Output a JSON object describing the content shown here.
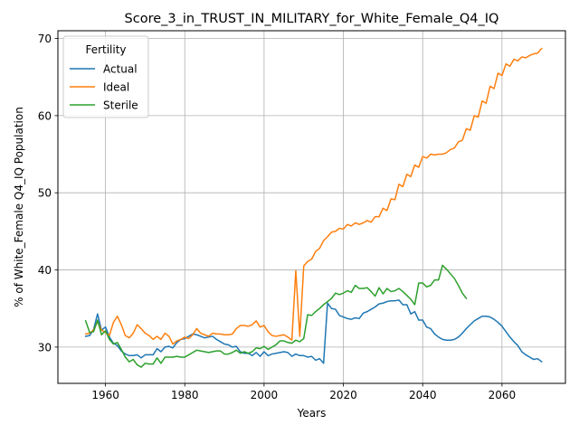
{
  "chart_data": {
    "type": "line",
    "title": "Score_3_in_TRUST_IN_MILITARY_for_White_Female_Q4_IQ",
    "xlabel": "Years",
    "ylabel": "% of White_Female Q4_IQ Population",
    "xlim": [
      1948,
      2076
    ],
    "ylim": [
      25.3,
      71.0
    ],
    "xticks": [
      1960,
      1980,
      2000,
      2020,
      2040,
      2060
    ],
    "yticks": [
      30,
      40,
      50,
      60,
      70
    ],
    "grid": true,
    "legend": {
      "title": "Fertility",
      "position": "top-left"
    },
    "series": [
      {
        "name": "Actual",
        "color": "#1f77b4",
        "x": [
          1955,
          1956,
          1957,
          1958,
          1959,
          1960,
          1961,
          1962,
          1963,
          1964,
          1965,
          1966,
          1967,
          1968,
          1969,
          1970,
          1971,
          1972,
          1973,
          1974,
          1975,
          1976,
          1977,
          1978,
          1979,
          1980,
          1981,
          1982,
          1983,
          1984,
          1985,
          1986,
          1987,
          1988,
          1989,
          1990,
          1991,
          1992,
          1993,
          1994,
          1995,
          1996,
          1997,
          1998,
          1999,
          2000,
          2001,
          2002,
          2003,
          2004,
          2005,
          2006,
          2007,
          2008,
          2009,
          2010,
          2011,
          2012,
          2013,
          2014,
          2015,
          2016,
          2017,
          2018,
          2019,
          2020,
          2021,
          2022,
          2023,
          2024,
          2025,
          2026,
          2027,
          2028,
          2029,
          2030,
          2031,
          2032,
          2033,
          2034,
          2035,
          2036,
          2037,
          2038,
          2039,
          2040,
          2041,
          2042,
          2043,
          2044,
          2045,
          2046,
          2047,
          2048,
          2049,
          2050,
          2051,
          2052,
          2053,
          2054,
          2055,
          2056,
          2057,
          2058,
          2059,
          2060,
          2061,
          2062,
          2063,
          2064,
          2065,
          2066,
          2067,
          2068,
          2069,
          2070
        ],
        "y": [
          31.4,
          31.5,
          32.3,
          34.3,
          32.2,
          32.6,
          31.3,
          30.5,
          30.2,
          29.5,
          29.1,
          28.9,
          28.9,
          29.0,
          28.6,
          29.0,
          29.0,
          29.0,
          29.8,
          29.4,
          30.0,
          30.1,
          29.9,
          30.6,
          31.0,
          31.1,
          31.4,
          31.7,
          31.6,
          31.4,
          31.2,
          31.3,
          31.4,
          31.0,
          30.7,
          30.4,
          30.3,
          30.0,
          30.1,
          29.4,
          29.2,
          29.2,
          28.9,
          29.3,
          28.8,
          29.4,
          28.9,
          29.1,
          29.2,
          29.3,
          29.4,
          29.3,
          28.8,
          29.1,
          28.9,
          28.9,
          28.7,
          28.8,
          28.3,
          28.5,
          27.9,
          35.7,
          35.0,
          34.9,
          34.1,
          33.9,
          33.7,
          33.6,
          33.8,
          33.7,
          34.4,
          34.6,
          34.9,
          35.2,
          35.6,
          35.7,
          35.9,
          36.0,
          36.0,
          36.1,
          35.5,
          35.5,
          34.3,
          34.6,
          33.5,
          33.5,
          32.6,
          32.4,
          31.7,
          31.3,
          31.0,
          30.9,
          30.9,
          31.0,
          31.3,
          31.8,
          32.4,
          32.9,
          33.4,
          33.7,
          34.0,
          34.0,
          33.9,
          33.6,
          33.2,
          32.7,
          32.0,
          31.3,
          30.7,
          30.2,
          29.4,
          29.0,
          28.7,
          28.4,
          28.5,
          28.1
        ]
      },
      {
        "name": "Ideal",
        "color": "#ff7f0e",
        "x": [
          1955,
          1956,
          1957,
          1958,
          1959,
          1960,
          1961,
          1962,
          1963,
          1964,
          1965,
          1966,
          1967,
          1968,
          1969,
          1970,
          1971,
          1972,
          1973,
          1974,
          1975,
          1976,
          1977,
          1978,
          1979,
          1980,
          1981,
          1982,
          1983,
          1984,
          1985,
          1986,
          1987,
          1988,
          1989,
          1990,
          1991,
          1992,
          1993,
          1994,
          1995,
          1996,
          1997,
          1998,
          1999,
          2000,
          2001,
          2002,
          2003,
          2004,
          2005,
          2006,
          2007,
          2008,
          2009,
          2010,
          2011,
          2012,
          2013,
          2014,
          2015,
          2016,
          2017,
          2018,
          2019,
          2020,
          2021,
          2022,
          2023,
          2024,
          2025,
          2026,
          2027,
          2028,
          2029,
          2030,
          2031,
          2032,
          2033,
          2034,
          2035,
          2036,
          2037,
          2038,
          2039,
          2040,
          2041,
          2042,
          2043,
          2044,
          2045,
          2046,
          2047,
          2048,
          2049,
          2050,
          2051,
          2052,
          2053,
          2054,
          2055,
          2056,
          2057,
          2058,
          2059,
          2060,
          2061,
          2062,
          2063,
          2064,
          2065,
          2066,
          2067,
          2068,
          2069,
          2070
        ],
        "y": [
          31.7,
          31.8,
          32.2,
          33.3,
          32.2,
          31.9,
          31.5,
          33.2,
          34.0,
          32.9,
          31.5,
          31.2,
          31.8,
          32.9,
          32.4,
          31.8,
          31.5,
          31.0,
          31.4,
          31.0,
          31.8,
          31.4,
          30.4,
          30.8,
          31.0,
          31.3,
          31.1,
          31.6,
          32.4,
          31.8,
          31.6,
          31.4,
          31.8,
          31.7,
          31.7,
          31.6,
          31.6,
          31.7,
          32.4,
          32.8,
          32.8,
          32.7,
          32.9,
          33.4,
          32.6,
          32.8,
          32.0,
          31.5,
          31.4,
          31.5,
          31.6,
          31.3,
          30.9,
          39.9,
          31.4,
          40.5,
          41.1,
          41.4,
          42.4,
          42.8,
          43.8,
          44.3,
          44.9,
          45.0,
          45.4,
          45.3,
          45.9,
          45.7,
          46.1,
          45.9,
          46.1,
          46.4,
          46.2,
          46.9,
          46.9,
          48.0,
          47.7,
          49.2,
          49.1,
          51.1,
          50.8,
          52.4,
          52.1,
          53.6,
          53.3,
          54.7,
          54.5,
          55.0,
          54.9,
          55.0,
          55.0,
          55.2,
          55.6,
          55.8,
          56.6,
          56.8,
          58.3,
          58.1,
          60.0,
          59.8,
          61.9,
          61.6,
          63.8,
          63.5,
          65.5,
          65.2,
          66.7,
          66.4,
          67.3,
          67.1,
          67.6,
          67.5,
          67.8,
          68.0,
          68.1,
          68.7
        ]
      },
      {
        "name": "Sterile",
        "color": "#2ca02c",
        "x": [
          1955,
          1956,
          1957,
          1958,
          1959,
          1960,
          1961,
          1962,
          1963,
          1964,
          1965,
          1966,
          1967,
          1968,
          1969,
          1970,
          1971,
          1972,
          1973,
          1974,
          1975,
          1976,
          1977,
          1978,
          1979,
          1980,
          1981,
          1982,
          1983,
          1984,
          1985,
          1986,
          1987,
          1988,
          1989,
          1990,
          1991,
          1992,
          1993,
          1994,
          1995,
          1996,
          1997,
          1998,
          1999,
          2000,
          2001,
          2002,
          2003,
          2004,
          2005,
          2006,
          2007,
          2008,
          2009,
          2010,
          2011,
          2012,
          2013,
          2014,
          2015,
          2016,
          2017,
          2018,
          2019,
          2020,
          2021,
          2022,
          2023,
          2024,
          2025,
          2026,
          2027,
          2028,
          2029,
          2030,
          2031,
          2032,
          2033,
          2034,
          2035,
          2036,
          2037,
          2038,
          2039,
          2040,
          2041,
          2042,
          2043,
          2044,
          2045,
          2046,
          2047,
          2048,
          2049,
          2050,
          2051
        ],
        "y": [
          33.4,
          31.9,
          32.0,
          33.5,
          31.6,
          32.1,
          31.0,
          30.4,
          30.6,
          29.7,
          28.7,
          28.1,
          28.4,
          27.7,
          27.4,
          27.9,
          27.8,
          27.8,
          28.6,
          27.9,
          28.7,
          28.7,
          28.7,
          28.8,
          28.7,
          28.7,
          29.0,
          29.3,
          29.6,
          29.5,
          29.4,
          29.3,
          29.4,
          29.5,
          29.5,
          29.1,
          29.1,
          29.3,
          29.6,
          29.2,
          29.4,
          29.2,
          29.4,
          29.9,
          29.8,
          30.1,
          29.7,
          30.0,
          30.3,
          30.8,
          30.8,
          30.6,
          30.5,
          30.9,
          30.7,
          31.1,
          34.2,
          34.1,
          34.6,
          35.0,
          35.5,
          35.9,
          36.3,
          37.0,
          36.8,
          37.0,
          37.3,
          37.1,
          38.0,
          37.6,
          37.6,
          37.7,
          37.2,
          36.6,
          37.7,
          36.9,
          37.6,
          37.2,
          37.3,
          37.6,
          37.2,
          36.7,
          36.2,
          35.5,
          38.3,
          38.3,
          37.8,
          38.0,
          38.7,
          38.7,
          40.6,
          40.1,
          39.5,
          38.9,
          38.0,
          37.0,
          36.3
        ]
      }
    ]
  }
}
